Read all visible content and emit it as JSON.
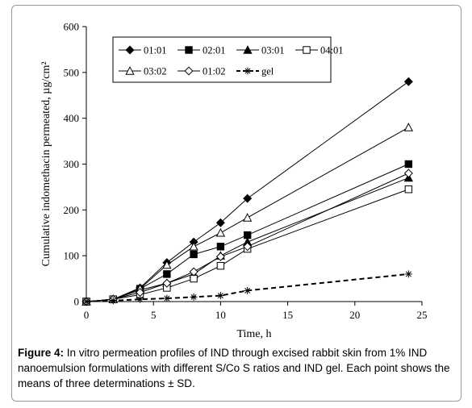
{
  "chart_data": {
    "type": "line",
    "title": "",
    "xlabel": "Time, h",
    "ylabel": "Cumulative indomethacin permeated, µg/cm²",
    "xlim": [
      0,
      25
    ],
    "ylim": [
      0,
      600
    ],
    "xticks": [
      0,
      5,
      10,
      15,
      20,
      25
    ],
    "yticks": [
      0,
      100,
      200,
      300,
      400,
      500,
      600
    ],
    "grid": false,
    "legend_position": "top-left-inside",
    "x": [
      0,
      2,
      4,
      6,
      8,
      10,
      12,
      24
    ],
    "series": [
      {
        "name": "01:01",
        "marker": "diamond-filled",
        "dashed": false,
        "values": [
          0,
          5,
          30,
          85,
          130,
          172,
          225,
          480
        ]
      },
      {
        "name": "02:01",
        "marker": "square-filled",
        "dashed": false,
        "values": [
          0,
          5,
          28,
          60,
          103,
          120,
          145,
          300
        ]
      },
      {
        "name": "03:01",
        "marker": "triangle-filled",
        "dashed": false,
        "values": [
          0,
          5,
          25,
          40,
          60,
          100,
          130,
          270
        ]
      },
      {
        "name": "04:01",
        "marker": "square-open",
        "dashed": false,
        "values": [
          0,
          5,
          15,
          30,
          50,
          78,
          115,
          245
        ]
      },
      {
        "name": "03:02",
        "marker": "triangle-open",
        "dashed": false,
        "values": [
          0,
          5,
          28,
          80,
          120,
          150,
          183,
          380
        ]
      },
      {
        "name": "01:02",
        "marker": "diamond-open",
        "dashed": false,
        "values": [
          0,
          5,
          20,
          40,
          65,
          98,
          120,
          280
        ]
      },
      {
        "name": "gel",
        "marker": "asterisk",
        "dashed": true,
        "values": [
          0,
          2,
          5,
          7,
          10,
          13,
          24,
          60
        ]
      }
    ]
  },
  "caption": {
    "label": "Figure 4:",
    "text": " In vitro permeation profiles of IND through excised rabbit skin from 1% IND nanoemulsion formulations with different S/Co S ratios and IND gel. Each point shows the means of three determinations ± SD."
  }
}
